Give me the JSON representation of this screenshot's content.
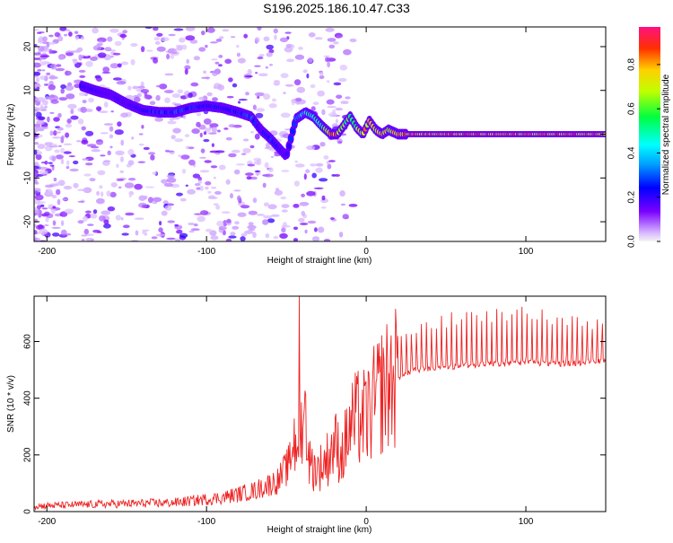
{
  "title": "S196.2025.186.10.47.C33",
  "colors": {
    "line": "#ee2222",
    "axes": "#000000"
  },
  "chart_data": [
    {
      "type": "heatmap",
      "xlabel": "Height of straight line (km)",
      "ylabel": "Frequency (Hz)",
      "xlim": [
        -208,
        150
      ],
      "ylim": [
        -24.5,
        24.5
      ],
      "x_ticks": [
        -200,
        -100,
        0,
        100
      ],
      "y_ticks": [
        -20,
        -10,
        0,
        10,
        20
      ],
      "colorbar": {
        "label": "Normalized spectral amplitude",
        "range": [
          0,
          0.97
        ],
        "ticks": [
          0.0,
          0.2,
          0.4,
          0.6,
          0.8
        ]
      },
      "ridge": {
        "x": [
          -178,
          -170,
          -160,
          -150,
          -140,
          -130,
          -120,
          -110,
          -100,
          -90,
          -80,
          -72,
          -66,
          -60,
          -55,
          -50,
          -44,
          -38,
          -33,
          -28,
          -22,
          -18,
          -14,
          -10,
          -6,
          -2,
          2,
          6,
          10,
          14,
          20,
          25,
          40,
          60,
          80,
          100,
          120,
          150
        ],
        "y": [
          11,
          10,
          9,
          7,
          5.5,
          5,
          5,
          6,
          6.5,
          6,
          5,
          4,
          1,
          -1,
          -3,
          -5,
          3.5,
          5,
          4,
          2,
          0,
          0,
          2,
          4,
          1.5,
          0,
          3,
          1,
          0,
          1,
          0,
          0,
          0,
          0,
          0,
          0,
          0,
          0
        ],
        "amp": [
          0.25,
          0.22,
          0.2,
          0.2,
          0.25,
          0.3,
          0.32,
          0.3,
          0.28,
          0.25,
          0.3,
          0.35,
          0.2,
          0.3,
          0.25,
          0.2,
          0.35,
          0.5,
          0.55,
          0.6,
          0.85,
          0.85,
          0.7,
          0.6,
          0.7,
          0.85,
          0.8,
          0.8,
          0.85,
          0.8,
          0.9,
          0.9,
          0.88,
          0.9,
          0.9,
          0.9,
          0.9,
          0.9
        ]
      }
    },
    {
      "type": "line",
      "xlabel": "Height of straight line (km)",
      "ylabel": "SNR (10 * v/v)",
      "xlim": [
        -208,
        150
      ],
      "ylim": [
        0,
        760
      ],
      "x_ticks": [
        -200,
        -100,
        0,
        100
      ],
      "y_ticks": [
        0,
        200,
        400,
        600
      ],
      "profile": {
        "x": [
          -208,
          -170,
          -120,
          -90,
          -70,
          -55,
          -48,
          -42,
          -38,
          -35,
          -30,
          -25,
          -20,
          -15,
          -10,
          -5,
          0,
          10,
          20,
          30,
          50,
          80,
          100,
          120,
          150
        ],
        "y": [
          15,
          20,
          25,
          40,
          60,
          90,
          140,
          300,
          330,
          160,
          150,
          180,
          240,
          200,
          300,
          330,
          330,
          430,
          480,
          510,
          520,
          530,
          535,
          530,
          540
        ]
      }
    }
  ]
}
